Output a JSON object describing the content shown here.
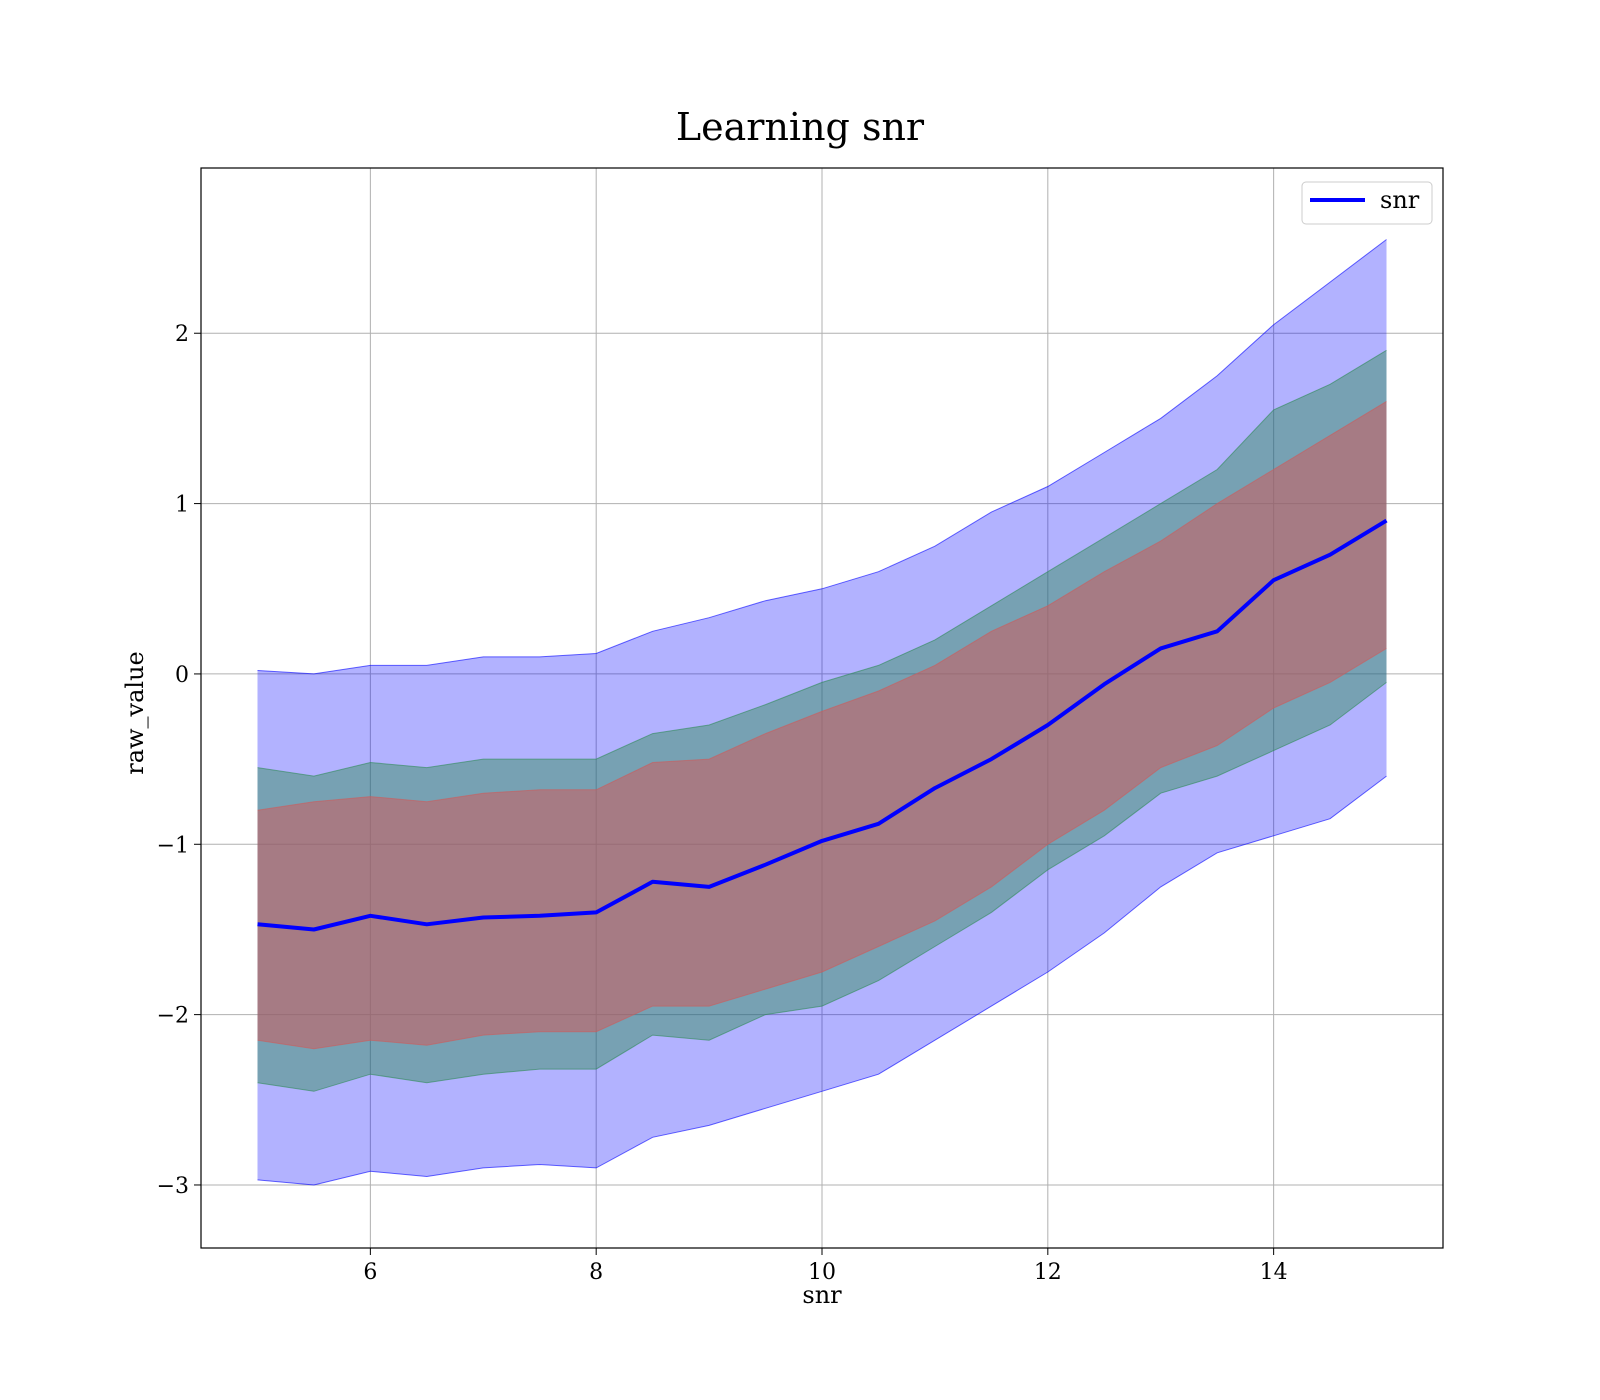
{
  "chart_data": {
    "type": "area",
    "title": "Learning snr",
    "xlabel": "snr",
    "ylabel": "raw_value",
    "xlim": [
      4.5,
      15.5
    ],
    "ylim": [
      -3.37,
      2.97
    ],
    "x_ticks": [
      6,
      8,
      10,
      12,
      14
    ],
    "x_tick_labels": [
      "6",
      "8",
      "10",
      "12",
      "14"
    ],
    "y_ticks": [
      2,
      1,
      0,
      -1,
      -2,
      -3
    ],
    "y_tick_labels": [
      "2",
      "1",
      "0",
      "−1",
      "−2",
      "−3"
    ],
    "grid": true,
    "legend": {
      "position": "top-right",
      "entries": [
        {
          "label": "snr",
          "color": "#0000ff"
        }
      ]
    },
    "x": [
      5.0,
      5.5,
      6.0,
      6.5,
      7.0,
      7.5,
      8.0,
      8.5,
      9.0,
      9.5,
      10.0,
      10.5,
      11.0,
      11.5,
      12.0,
      12.5,
      13.0,
      13.5,
      14.0,
      14.5,
      15.0
    ],
    "series": [
      {
        "name": "snr",
        "role": "mean",
        "color": "#0000ff",
        "values": [
          -1.47,
          -1.5,
          -1.42,
          -1.47,
          -1.43,
          -1.42,
          -1.4,
          -1.22,
          -1.25,
          -1.12,
          -0.98,
          -0.88,
          -0.67,
          -0.5,
          -0.3,
          -0.06,
          0.15,
          0.25,
          0.55,
          0.7,
          0.9
        ]
      },
      {
        "role": "band",
        "color": "#0000ff",
        "opacity": 0.3,
        "upper": [
          0.02,
          0.0,
          0.05,
          0.05,
          0.1,
          0.1,
          0.12,
          0.25,
          0.33,
          0.43,
          0.5,
          0.6,
          0.75,
          0.95,
          1.1,
          1.3,
          1.5,
          1.75,
          2.05,
          2.3,
          2.55
        ],
        "lower": [
          -2.97,
          -3.0,
          -2.92,
          -2.95,
          -2.9,
          -2.88,
          -2.9,
          -2.72,
          -2.65,
          -2.55,
          -2.45,
          -2.35,
          -2.15,
          -1.95,
          -1.75,
          -1.52,
          -1.25,
          -1.05,
          -0.95,
          -0.85,
          -0.6
        ]
      },
      {
        "role": "band",
        "color": "#2e8b57",
        "opacity": 0.45,
        "upper": [
          -0.55,
          -0.6,
          -0.52,
          -0.55,
          -0.5,
          -0.5,
          -0.5,
          -0.35,
          -0.3,
          -0.18,
          -0.05,
          0.05,
          0.2,
          0.4,
          0.6,
          0.8,
          1.0,
          1.2,
          1.55,
          1.7,
          1.9
        ],
        "lower": [
          -2.4,
          -2.45,
          -2.35,
          -2.4,
          -2.35,
          -2.32,
          -2.32,
          -2.12,
          -2.15,
          -2.0,
          -1.95,
          -1.8,
          -1.6,
          -1.4,
          -1.15,
          -0.95,
          -0.7,
          -0.6,
          -0.45,
          -0.3,
          -0.05
        ]
      },
      {
        "role": "band",
        "color": "#cd5c5c",
        "opacity": 0.55,
        "upper": [
          -0.8,
          -0.75,
          -0.72,
          -0.75,
          -0.7,
          -0.68,
          -0.68,
          -0.52,
          -0.5,
          -0.35,
          -0.22,
          -0.1,
          0.05,
          0.25,
          0.4,
          0.6,
          0.78,
          1.0,
          1.2,
          1.4,
          1.6
        ],
        "lower": [
          -2.15,
          -2.2,
          -2.15,
          -2.18,
          -2.12,
          -2.1,
          -2.1,
          -1.95,
          -1.95,
          -1.85,
          -1.75,
          -1.6,
          -1.45,
          -1.25,
          -1.0,
          -0.8,
          -0.55,
          -0.42,
          -0.2,
          -0.05,
          0.15
        ]
      }
    ]
  }
}
